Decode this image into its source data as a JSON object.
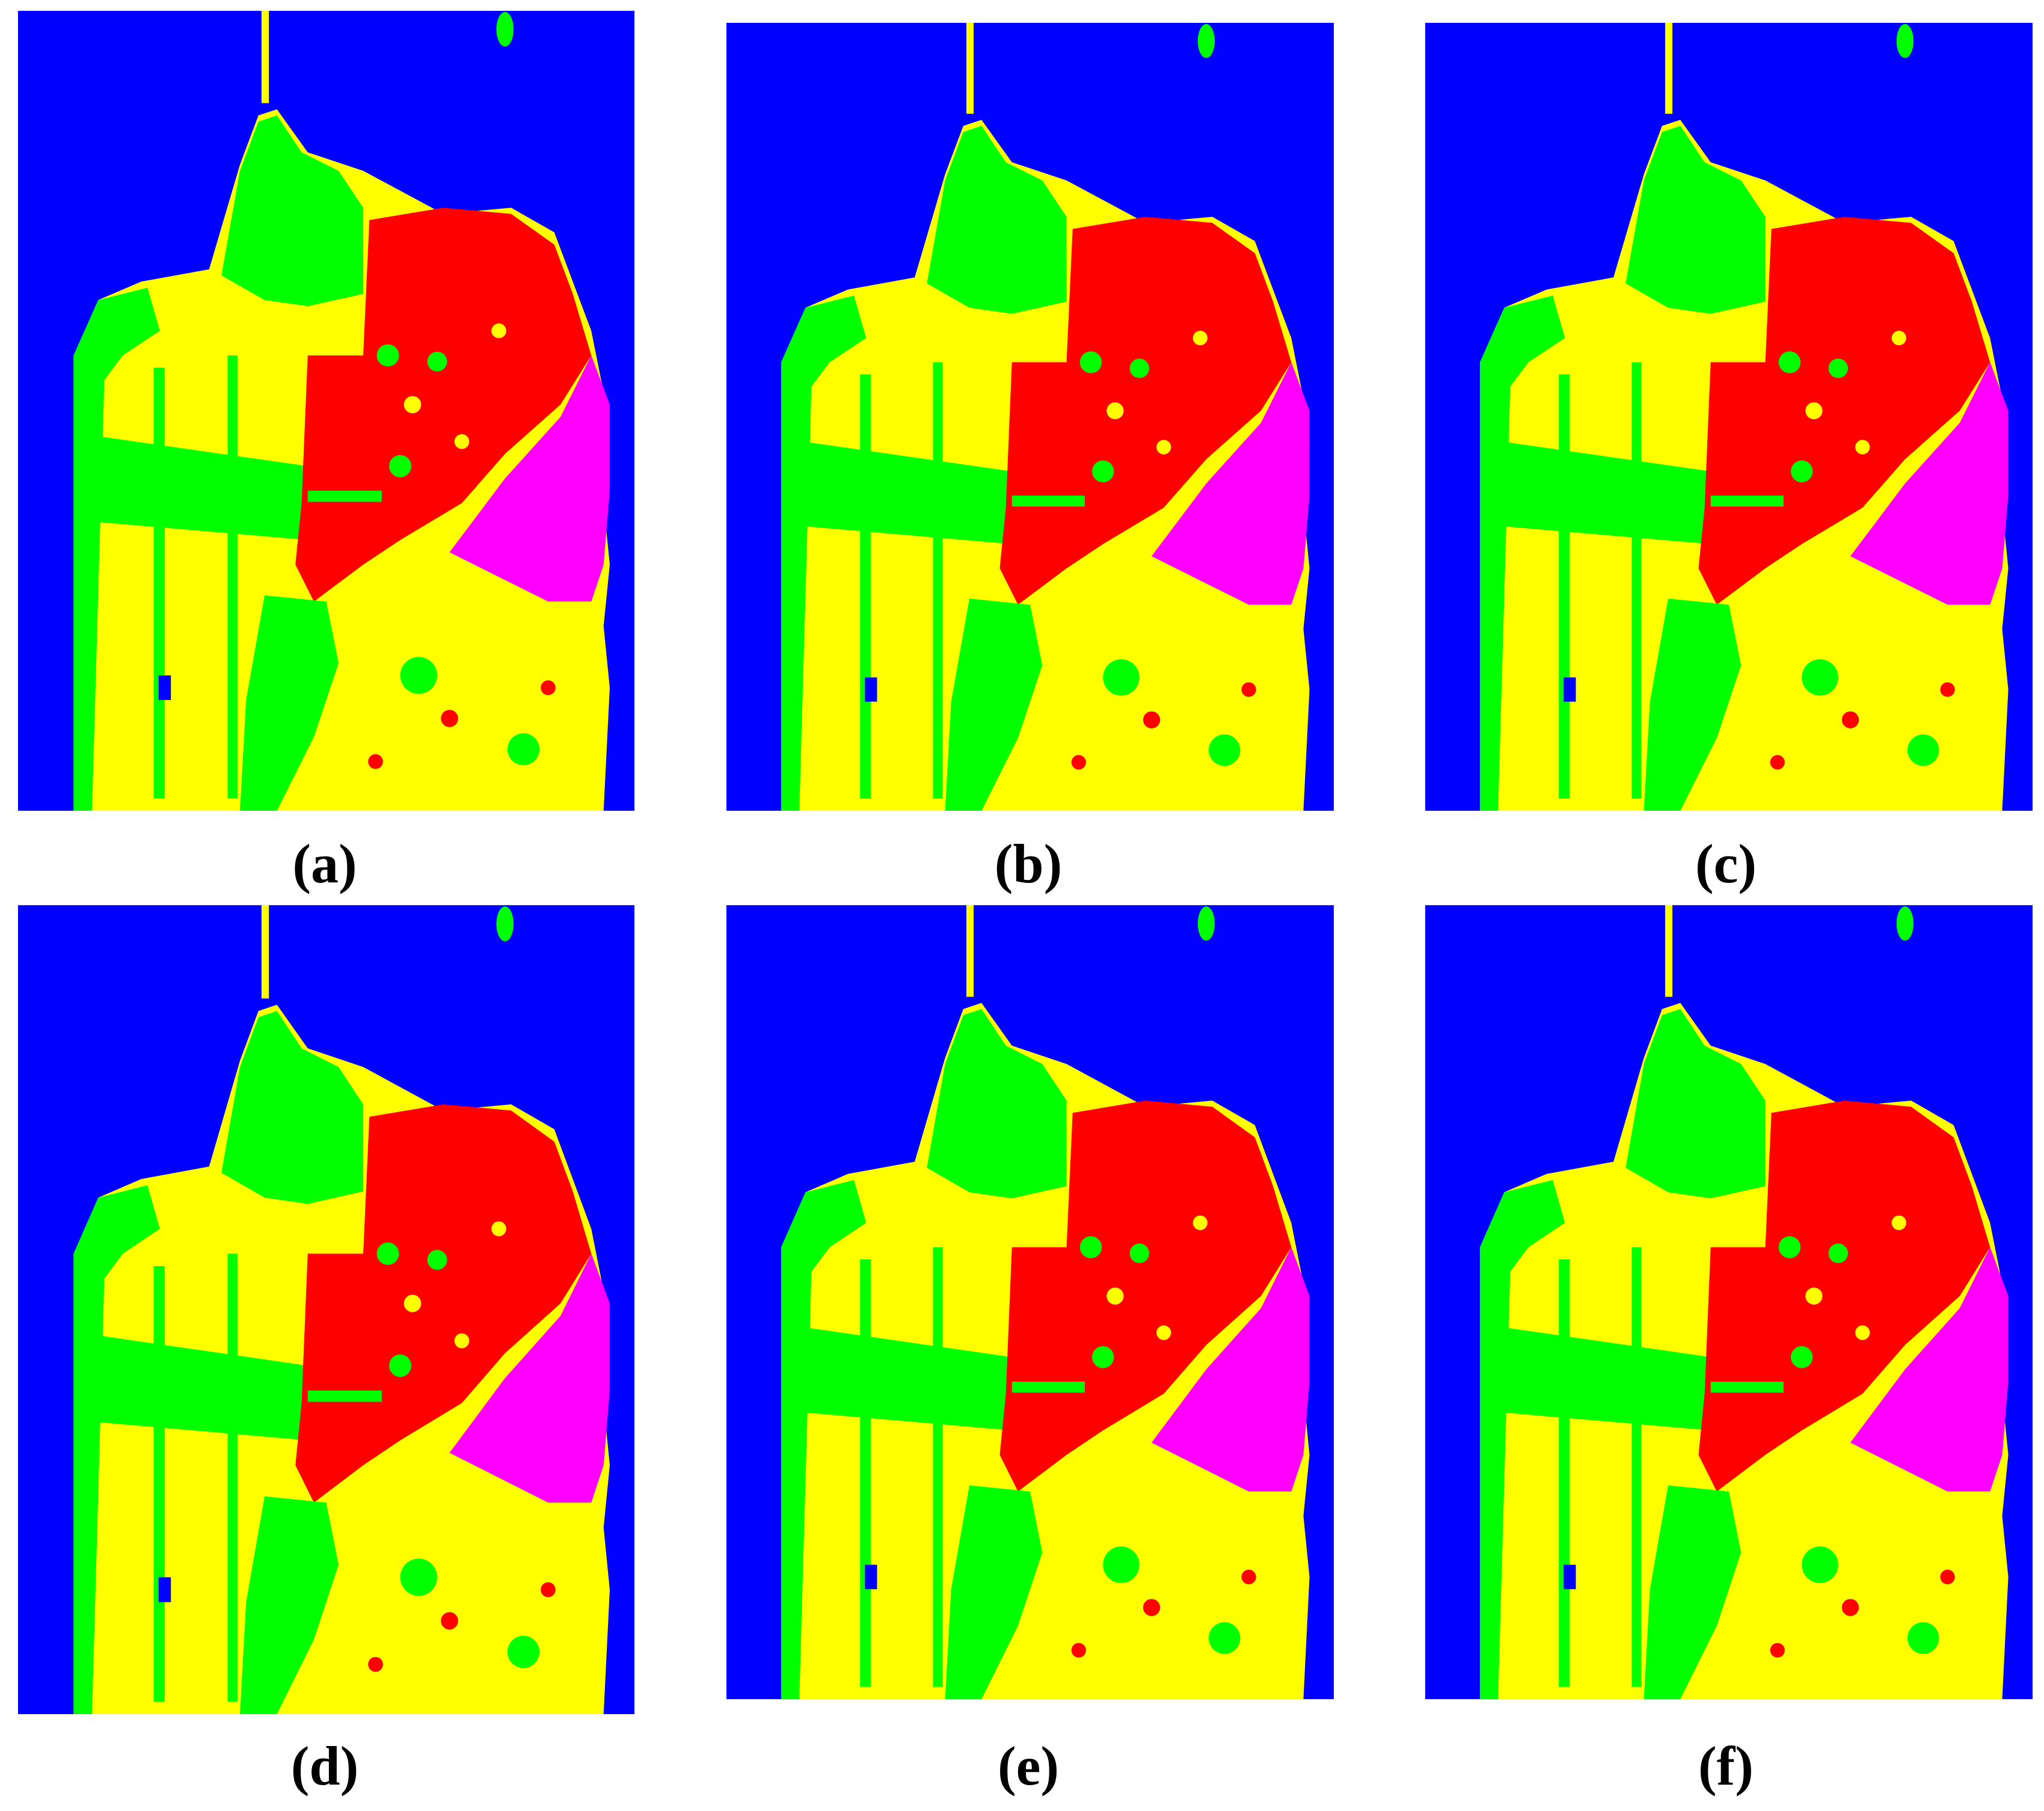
{
  "colors": {
    "water": "#0000ff",
    "vegetation": "#00ff00",
    "low_density_urban": "#ffff00",
    "high_density_urban": "#ff0000",
    "developed": "#ff00ff"
  },
  "panels": [
    {
      "label": "(a)"
    },
    {
      "label": "(b)"
    },
    {
      "label": "(c)"
    },
    {
      "label": "(d)"
    },
    {
      "label": "(e)"
    },
    {
      "label": "(f)"
    }
  ]
}
